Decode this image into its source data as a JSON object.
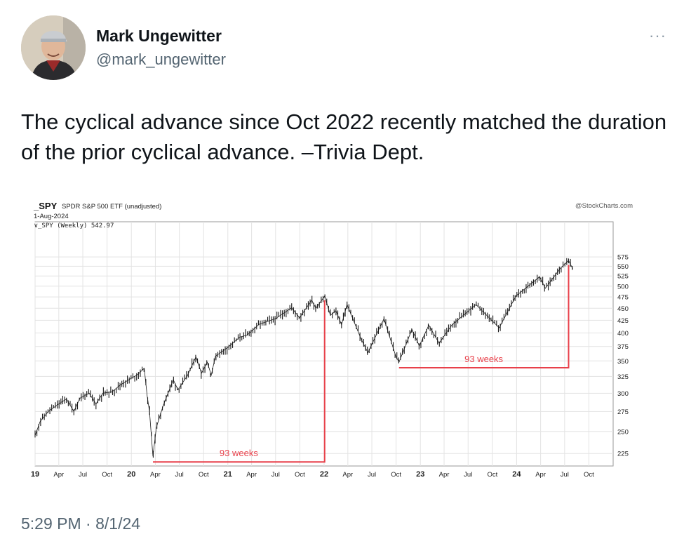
{
  "author": {
    "name": "Mark Ungewitter",
    "handle": "@mark_ungewitter",
    "avatar_icon": "user-avatar-photo"
  },
  "more_label": "···",
  "tweet": {
    "text": "The cyclical advance since Oct 2022 recently matched the duration of the prior cyclical advance. –Trivia Dept.",
    "timestamp": "5:29 PM · 8/1/24"
  },
  "chart_data": {
    "type": "line",
    "title": "_SPY",
    "subtitle": "SPDR S&P 500 ETF (unadjusted)",
    "date_label": "1-Aug-2024",
    "legend": "_SPY (Weekly) 542.97",
    "watermark": "@StockCharts.com",
    "y_scale": "log",
    "ylim": [
      212,
      680
    ],
    "y_ticks": [
      225,
      250,
      275,
      300,
      325,
      350,
      375,
      400,
      425,
      450,
      475,
      500,
      525,
      550,
      575
    ],
    "x_ticks": [
      "19",
      "Apr",
      "Jul",
      "Oct",
      "20",
      "Apr",
      "Jul",
      "Oct",
      "21",
      "Apr",
      "Jul",
      "Oct",
      "22",
      "Apr",
      "Jul",
      "Oct",
      "23",
      "Apr",
      "Jul",
      "Oct",
      "24",
      "Apr",
      "Jul",
      "Oct"
    ],
    "x_ticks_bold": [
      "19",
      "20",
      "21",
      "22",
      "23",
      "24"
    ],
    "xlim": [
      "2019-01-01",
      "2025-01-01"
    ],
    "series": [
      {
        "values": [
          [
            "2019-01-01",
            245
          ],
          [
            "2019-01-20",
            262
          ],
          [
            "2019-02-20",
            275
          ],
          [
            "2019-04-01",
            285
          ],
          [
            "2019-04-30",
            292
          ],
          [
            "2019-05-28",
            275
          ],
          [
            "2019-06-20",
            293
          ],
          [
            "2019-07-25",
            300
          ],
          [
            "2019-08-20",
            285
          ],
          [
            "2019-09-15",
            300
          ],
          [
            "2019-10-20",
            302
          ],
          [
            "2019-11-20",
            312
          ],
          [
            "2019-12-31",
            322
          ],
          [
            "2020-01-25",
            328
          ],
          [
            "2020-02-19",
            338
          ],
          [
            "2020-03-01",
            296
          ],
          [
            "2020-03-10",
            275
          ],
          [
            "2020-03-23",
            222
          ],
          [
            "2020-04-05",
            255
          ],
          [
            "2020-05-01",
            283
          ],
          [
            "2020-06-08",
            320
          ],
          [
            "2020-06-26",
            305
          ],
          [
            "2020-07-31",
            326
          ],
          [
            "2020-09-02",
            357
          ],
          [
            "2020-09-23",
            330
          ],
          [
            "2020-10-15",
            348
          ],
          [
            "2020-10-30",
            327
          ],
          [
            "2020-11-15",
            358
          ],
          [
            "2020-12-31",
            373
          ],
          [
            "2021-02-15",
            392
          ],
          [
            "2021-03-15",
            396
          ],
          [
            "2021-04-30",
            417
          ],
          [
            "2021-06-30",
            428
          ],
          [
            "2021-08-31",
            451
          ],
          [
            "2021-09-30",
            430
          ],
          [
            "2021-11-15",
            468
          ],
          [
            "2021-12-01",
            450
          ],
          [
            "2022-01-03",
            477
          ],
          [
            "2022-01-25",
            435
          ],
          [
            "2022-02-15",
            445
          ],
          [
            "2022-03-08",
            416
          ],
          [
            "2022-03-29",
            458
          ],
          [
            "2022-05-20",
            390
          ],
          [
            "2022-06-16",
            364
          ],
          [
            "2022-08-16",
            428
          ],
          [
            "2022-09-30",
            358
          ],
          [
            "2022-10-12",
            348
          ],
          [
            "2022-11-30",
            407
          ],
          [
            "2022-12-28",
            376
          ],
          [
            "2023-02-02",
            415
          ],
          [
            "2023-03-13",
            381
          ],
          [
            "2023-04-30",
            415
          ],
          [
            "2023-07-31",
            458
          ],
          [
            "2023-10-27",
            410
          ],
          [
            "2023-12-29",
            477
          ],
          [
            "2024-03-28",
            523
          ],
          [
            "2024-04-19",
            495
          ],
          [
            "2024-06-15",
            545
          ],
          [
            "2024-07-16",
            565
          ],
          [
            "2024-08-01",
            543
          ]
        ]
      }
    ],
    "annotations": [
      {
        "label": "93 weeks",
        "start": "2020-03-23",
        "end": "2022-01-03",
        "level": 222,
        "color": "#e8404a"
      },
      {
        "label": "93 weeks",
        "start": "2022-10-12",
        "end": "2024-07-16",
        "level": 348,
        "color": "#e8404a"
      }
    ],
    "grid": true
  }
}
